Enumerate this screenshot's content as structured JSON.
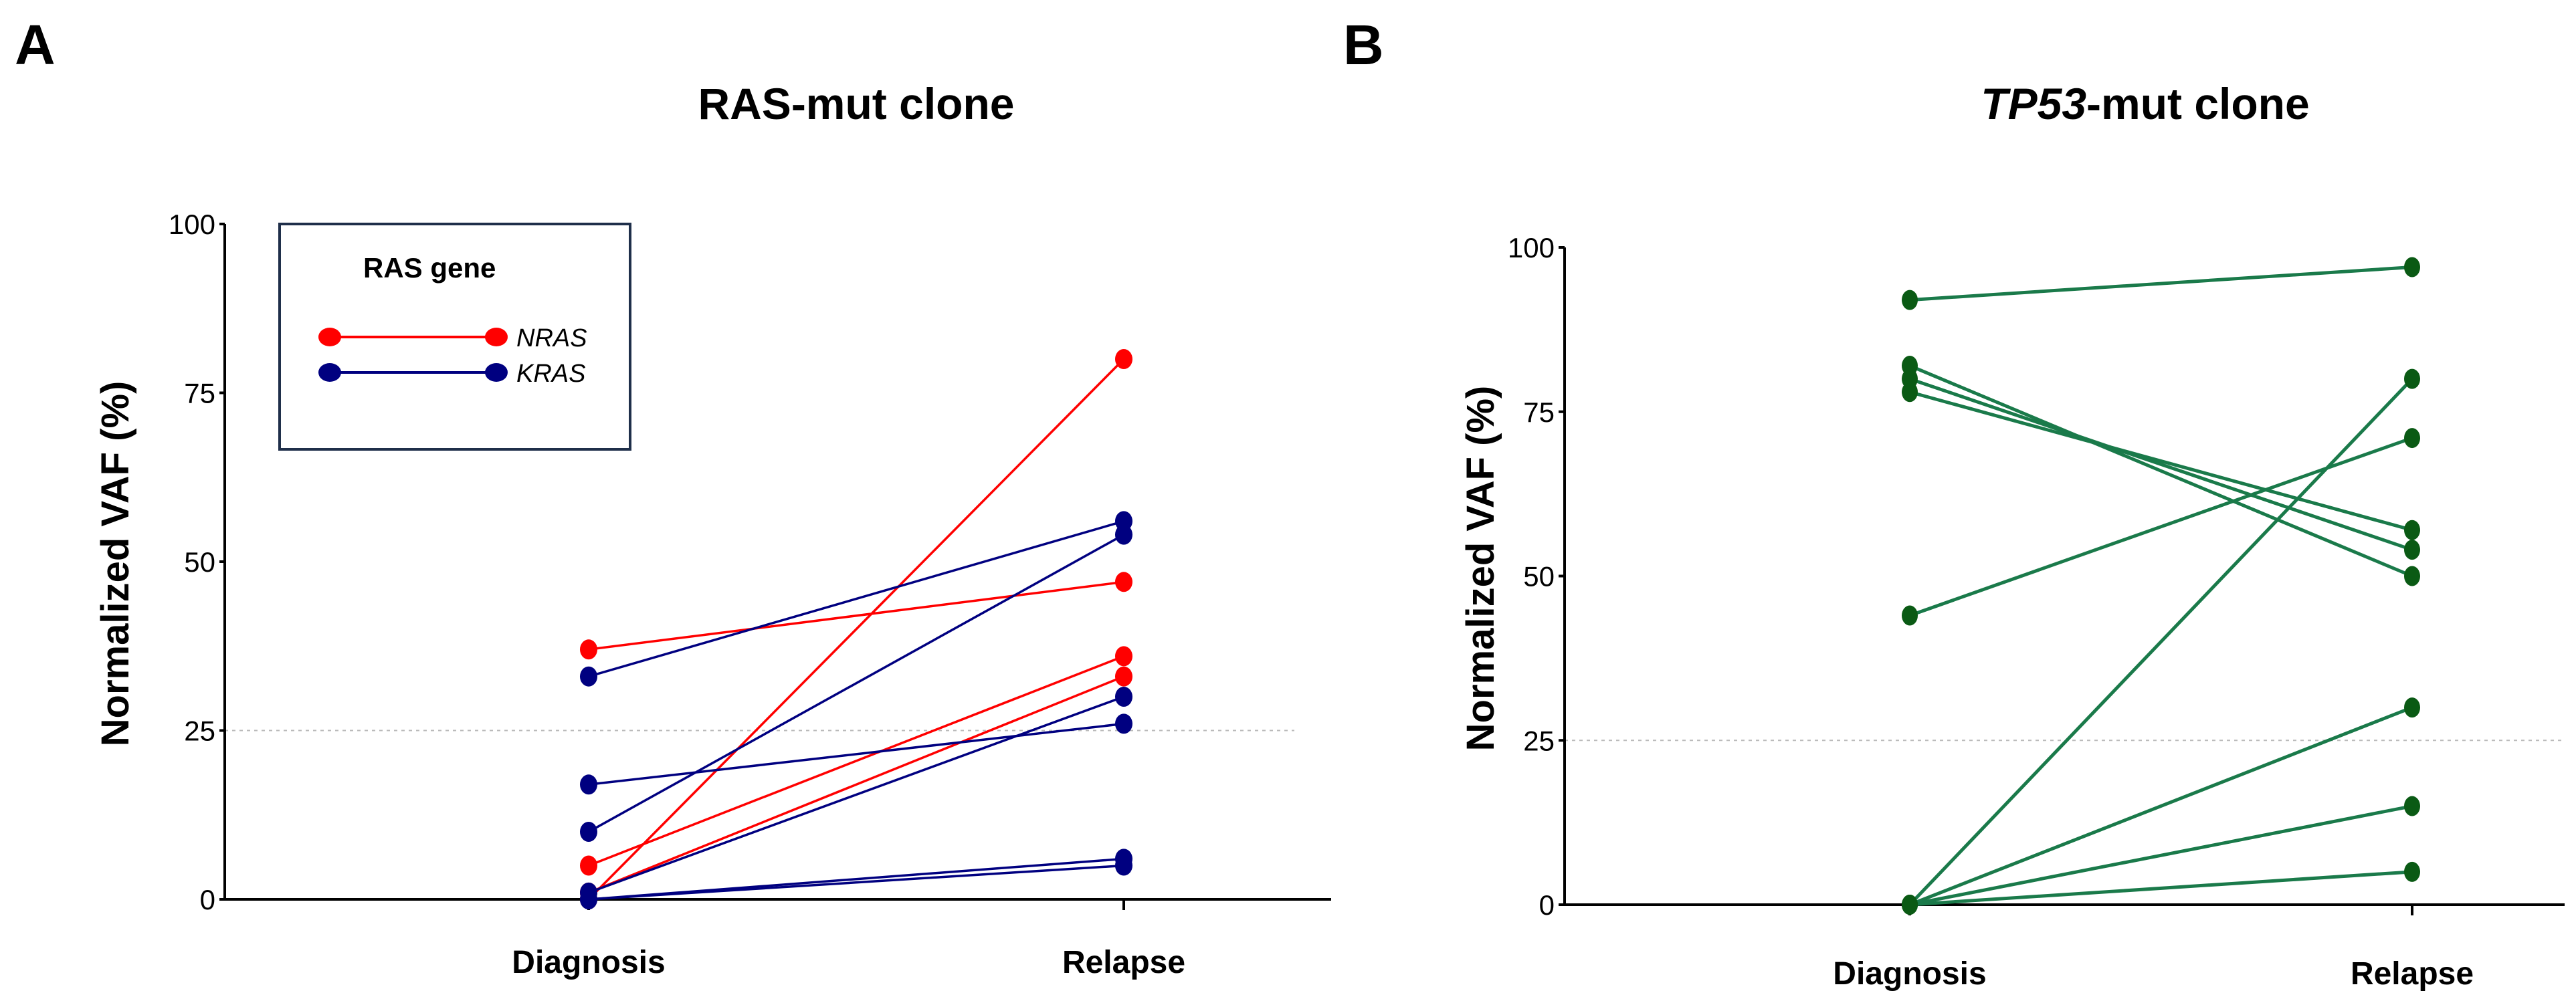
{
  "chart_data": [
    {
      "panel": "A",
      "type": "line",
      "title": "RAS-mut clone",
      "ylabel": "Normalized VAF (%)",
      "xlabel": "",
      "categories": [
        "Diagnosis",
        "Relapse"
      ],
      "ylim": [
        0,
        100
      ],
      "yticks": [
        0,
        25,
        50,
        75,
        100
      ],
      "reference_line": 25,
      "legend": {
        "title": "RAS gene",
        "position": "top-left",
        "entries": [
          {
            "label": "NRAS",
            "color": "#ff0000"
          },
          {
            "label": "KRAS",
            "color": "#000080"
          }
        ]
      },
      "series": [
        {
          "name": "NRAS",
          "color": "#ff0000",
          "values": [
            37,
            47
          ]
        },
        {
          "name": "NRAS",
          "color": "#ff0000",
          "values": [
            0,
            80
          ]
        },
        {
          "name": "NRAS",
          "color": "#ff0000",
          "values": [
            5,
            36
          ]
        },
        {
          "name": "NRAS",
          "color": "#ff0000",
          "values": [
            1,
            33
          ]
        },
        {
          "name": "KRAS",
          "color": "#000080",
          "values": [
            33,
            56
          ]
        },
        {
          "name": "KRAS",
          "color": "#000080",
          "values": [
            10,
            54
          ]
        },
        {
          "name": "KRAS",
          "color": "#000080",
          "values": [
            17,
            26
          ]
        },
        {
          "name": "KRAS",
          "color": "#000080",
          "values": [
            1,
            30
          ]
        },
        {
          "name": "KRAS",
          "color": "#000080",
          "values": [
            0,
            6
          ]
        },
        {
          "name": "KRAS",
          "color": "#000080",
          "values": [
            0,
            5
          ]
        }
      ]
    },
    {
      "panel": "B",
      "type": "line",
      "title": "TP53-mut clone",
      "title_italic_part": "TP53",
      "title_rest": "-mut clone",
      "ylabel": "Normalized VAF (%)",
      "xlabel": "",
      "categories": [
        "Diagnosis",
        "Relapse"
      ],
      "ylim": [
        0,
        100
      ],
      "yticks": [
        0,
        25,
        50,
        75,
        100
      ],
      "reference_line": 25,
      "series": [
        {
          "name": "TP53",
          "color": "#1a7a4a",
          "values": [
            92,
            97
          ]
        },
        {
          "name": "TP53",
          "color": "#1a7a4a",
          "values": [
            82,
            50
          ]
        },
        {
          "name": "TP53",
          "color": "#1a7a4a",
          "values": [
            80,
            54
          ]
        },
        {
          "name": "TP53",
          "color": "#1a7a4a",
          "values": [
            78,
            57
          ]
        },
        {
          "name": "TP53",
          "color": "#1a7a4a",
          "values": [
            44,
            71
          ]
        },
        {
          "name": "TP53",
          "color": "#1a7a4a",
          "values": [
            0,
            80
          ]
        },
        {
          "name": "TP53",
          "color": "#1a7a4a",
          "values": [
            0,
            30
          ]
        },
        {
          "name": "TP53",
          "color": "#1a7a4a",
          "values": [
            0,
            15
          ]
        },
        {
          "name": "TP53",
          "color": "#1a7a4a",
          "values": [
            0,
            5
          ]
        }
      ]
    }
  ],
  "colors": {
    "nras": "#ff0000",
    "kras": "#000080",
    "tp53_line": "#1a7a4a",
    "tp53_marker": "#0a5a14"
  }
}
